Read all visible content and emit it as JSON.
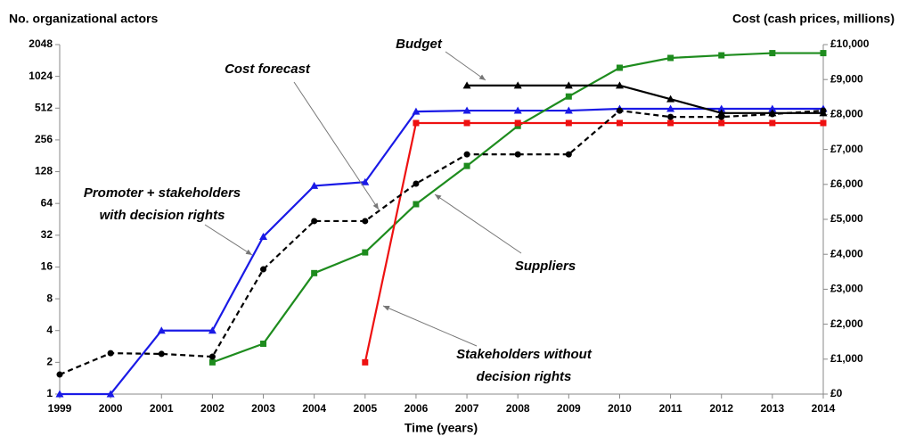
{
  "chart_data": {
    "type": "line",
    "y_label": "No. organizational actors",
    "y2_label": "Cost (cash prices, millions)",
    "x_label": "Time (years)",
    "categories": [
      "1999",
      "2000",
      "2001",
      "2002",
      "2003",
      "2004",
      "2005",
      "2006",
      "2007",
      "2008",
      "2009",
      "2010",
      "2011",
      "2012",
      "2013",
      "2014"
    ],
    "y_scale": "log2",
    "ylim": [
      1,
      2048
    ],
    "yticks": [
      1,
      2,
      4,
      8,
      16,
      32,
      64,
      128,
      256,
      512,
      1024,
      2048
    ],
    "y2lim": [
      0,
      10000
    ],
    "y2ticks": [
      {
        "value": 0,
        "label": "£0"
      },
      {
        "value": 1000,
        "label": "£1,000"
      },
      {
        "value": 2000,
        "label": "£2,000"
      },
      {
        "value": 3000,
        "label": "£3,000"
      },
      {
        "value": 4000,
        "label": "£4,000"
      },
      {
        "value": 5000,
        "label": "£5,000"
      },
      {
        "value": 6000,
        "label": "£6,000"
      },
      {
        "value": 7000,
        "label": "£7,000"
      },
      {
        "value": 8000,
        "label": "£8,000"
      },
      {
        "value": 9000,
        "label": "£9,000"
      },
      {
        "value": 10000,
        "label": "£10,000"
      }
    ],
    "series": [
      {
        "name": "Promoter + stakeholders with decision rights",
        "color": "#1a1ae6",
        "marker": "triangle",
        "dashed": false,
        "values": [
          1,
          1,
          4,
          4,
          31,
          94,
          102,
          475,
          485,
          485,
          485,
          505,
          505,
          505,
          505,
          505
        ]
      },
      {
        "name": "Suppliers",
        "color": "#1e8c1e",
        "marker": "square",
        "dashed": false,
        "values": [
          null,
          null,
          null,
          2,
          3,
          14,
          22,
          63,
          145,
          347,
          660,
          1235,
          1530,
          1620,
          1700,
          1700
        ]
      },
      {
        "name": "Stakeholders without decision rights",
        "color": "#ee1111",
        "marker": "square",
        "dashed": false,
        "values": [
          null,
          null,
          null,
          null,
          null,
          null,
          2,
          370,
          370,
          370,
          370,
          370,
          370,
          370,
          370,
          370
        ]
      },
      {
        "name": "Cost forecast",
        "color": "#000000",
        "marker": "circle",
        "dashed": true,
        "axis": "y2",
        "values": [
          560,
          1170,
          1150,
          1070,
          3570,
          4950,
          4950,
          6020,
          6860,
          6860,
          6860,
          8110,
          7930,
          7930,
          8010,
          8110
        ]
      },
      {
        "name": "Budget",
        "color": "#000000",
        "marker": "triangle",
        "dashed": false,
        "axis": "y2",
        "values": [
          null,
          null,
          null,
          null,
          null,
          null,
          null,
          null,
          8830,
          8830,
          8830,
          8830,
          8440,
          8040,
          8040,
          8040
        ]
      }
    ],
    "annotations": [
      {
        "lines": [
          "Budget"
        ]
      },
      {
        "lines": [
          "Cost forecast"
        ]
      },
      {
        "lines": [
          "Promoter + stakeholders",
          "with decision rights"
        ]
      },
      {
        "lines": [
          "Suppliers"
        ]
      },
      {
        "lines": [
          "Stakeholders without",
          "decision rights"
        ]
      }
    ]
  }
}
